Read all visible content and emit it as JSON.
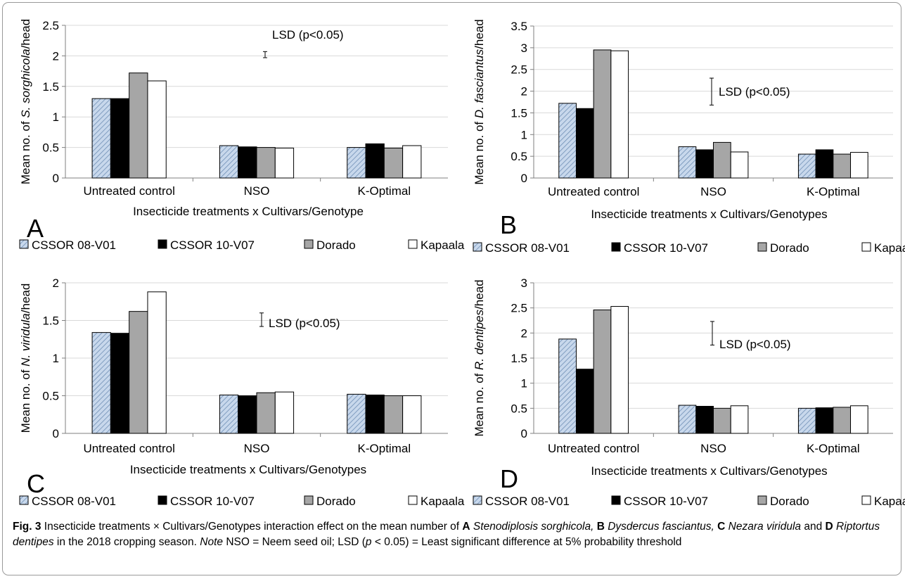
{
  "chart_data": [
    {
      "type": "bar",
      "panel_letter": "A",
      "ylabel_prefix": "Mean no. of ",
      "ylabel_italic": "S. sorghicola",
      "ylabel_suffix": "/head",
      "xlabel": "Insecticide treatments x Cultivars/Genotype",
      "categories": [
        "Untreated control",
        "NSO",
        "K-Optimal"
      ],
      "ylim": [
        0,
        2.5
      ],
      "yticks": [
        "0",
        "0.5",
        "1",
        "1.5",
        "2",
        "2.5"
      ],
      "lsd_label": "LSD (p<0.05)",
      "lsd_bar": [
        1.97,
        2.07
      ],
      "series": [
        {
          "name": "CSSOR 08-V01",
          "values": [
            1.3,
            0.53,
            0.5
          ]
        },
        {
          "name": "CSSOR 10-V07",
          "values": [
            1.3,
            0.51,
            0.56
          ]
        },
        {
          "name": "Dorado",
          "values": [
            1.72,
            0.5,
            0.49
          ]
        },
        {
          "name": "Kapaala",
          "values": [
            1.59,
            0.49,
            0.53
          ]
        }
      ]
    },
    {
      "type": "bar",
      "panel_letter": "B",
      "ylabel_prefix": "Mean no. of ",
      "ylabel_italic": "D. fasciantus",
      "ylabel_suffix": "/head",
      "xlabel": "Insecticide treatments x Cultivars/Genotypes",
      "categories": [
        "Untreated control",
        "NSO",
        "K-Optimal"
      ],
      "ylim": [
        0,
        3.5
      ],
      "yticks": [
        "0",
        "0.5",
        "1",
        "1.5",
        "2",
        "2.5",
        "3",
        "3.5"
      ],
      "lsd_label": "LSD (p<0.05)",
      "lsd_bar": [
        1.68,
        2.3
      ],
      "series": [
        {
          "name": "CSSOR 08-V01",
          "values": [
            1.72,
            0.72,
            0.55
          ]
        },
        {
          "name": "CSSOR 10-V07",
          "values": [
            1.6,
            0.65,
            0.65
          ]
        },
        {
          "name": "Dorado",
          "values": [
            2.95,
            0.82,
            0.55
          ]
        },
        {
          "name": "Kapaala",
          "values": [
            2.93,
            0.6,
            0.59
          ]
        }
      ]
    },
    {
      "type": "bar",
      "panel_letter": "C",
      "ylabel_prefix": "Mean no. of ",
      "ylabel_italic": "N. viridula",
      "ylabel_suffix": "/head",
      "xlabel": "Insecticide treatments x Cultivars/Genotypes",
      "categories": [
        "Untreated control",
        "NSO",
        "K-Optimal"
      ],
      "ylim": [
        0,
        2
      ],
      "yticks": [
        "0",
        "0.5",
        "1",
        "1.5",
        "2"
      ],
      "lsd_label": "LSD (p<0.05)",
      "lsd_bar": [
        1.42,
        1.6
      ],
      "series": [
        {
          "name": "CSSOR 08-V01",
          "values": [
            1.34,
            0.51,
            0.52
          ]
        },
        {
          "name": "CSSOR 10-V07",
          "values": [
            1.33,
            0.5,
            0.51
          ]
        },
        {
          "name": "Dorado",
          "values": [
            1.62,
            0.54,
            0.5
          ]
        },
        {
          "name": "Kapaala",
          "values": [
            1.88,
            0.55,
            0.5
          ]
        }
      ]
    },
    {
      "type": "bar",
      "panel_letter": "D",
      "ylabel_prefix": "Mean no. of ",
      "ylabel_italic": "R. dentipes",
      "ylabel_suffix": "/head",
      "xlabel": "Insecticide treatments x Cultivars/Genotypes",
      "categories": [
        "Untreated control",
        "NSO",
        "K-Optimal"
      ],
      "ylim": [
        0,
        3
      ],
      "yticks": [
        "0",
        "0.5",
        "1",
        "1.5",
        "2",
        "2.5",
        "3"
      ],
      "lsd_label": "LSD (p<0.05)",
      "lsd_bar": [
        1.76,
        2.23
      ],
      "series": [
        {
          "name": "CSSOR 08-V01",
          "values": [
            1.88,
            0.56,
            0.5
          ]
        },
        {
          "name": "CSSOR 10-V07",
          "values": [
            1.28,
            0.54,
            0.51
          ]
        },
        {
          "name": "Dorado",
          "values": [
            2.46,
            0.5,
            0.52
          ]
        },
        {
          "name": "Kapaala",
          "values": [
            2.53,
            0.55,
            0.55
          ]
        }
      ]
    }
  ],
  "series_colors": {
    "CSSOR 08-V01": "#c8d8ec",
    "CSSOR 10-V07": "#000000",
    "Dorado": "#a6a6a6",
    "Kapaala": "#ffffff"
  },
  "caption": {
    "fig_label": "Fig. 3",
    "parts": [
      {
        "t": "  Insecticide treatments × Cultivars/Genotypes interaction effect on the mean number of ",
        "s": ""
      },
      {
        "t": "A",
        "s": "b"
      },
      {
        "t": " Stenodiplosis sorghicola,",
        "s": "i"
      },
      {
        "t": " ",
        "s": ""
      },
      {
        "t": "B",
        "s": "b"
      },
      {
        "t": " Dysdercus fasciantus,",
        "s": "i"
      },
      {
        "t": " ",
        "s": ""
      },
      {
        "t": "C",
        "s": "b"
      },
      {
        "t": " Nezara viridula",
        "s": "i"
      },
      {
        "t": " and ",
        "s": ""
      },
      {
        "t": "D",
        "s": "b"
      },
      {
        "t": " Riptortus dentipes",
        "s": "i"
      },
      {
        "t": " in the 2018 cropping season. ",
        "s": ""
      },
      {
        "t": "Note",
        "s": "i"
      },
      {
        "t": " NSO = Neem seed oil; LSD (",
        "s": ""
      },
      {
        "t": "p",
        "s": "i"
      },
      {
        "t": " < 0.05) = Least significant difference at 5% probability threshold",
        "s": ""
      }
    ]
  }
}
